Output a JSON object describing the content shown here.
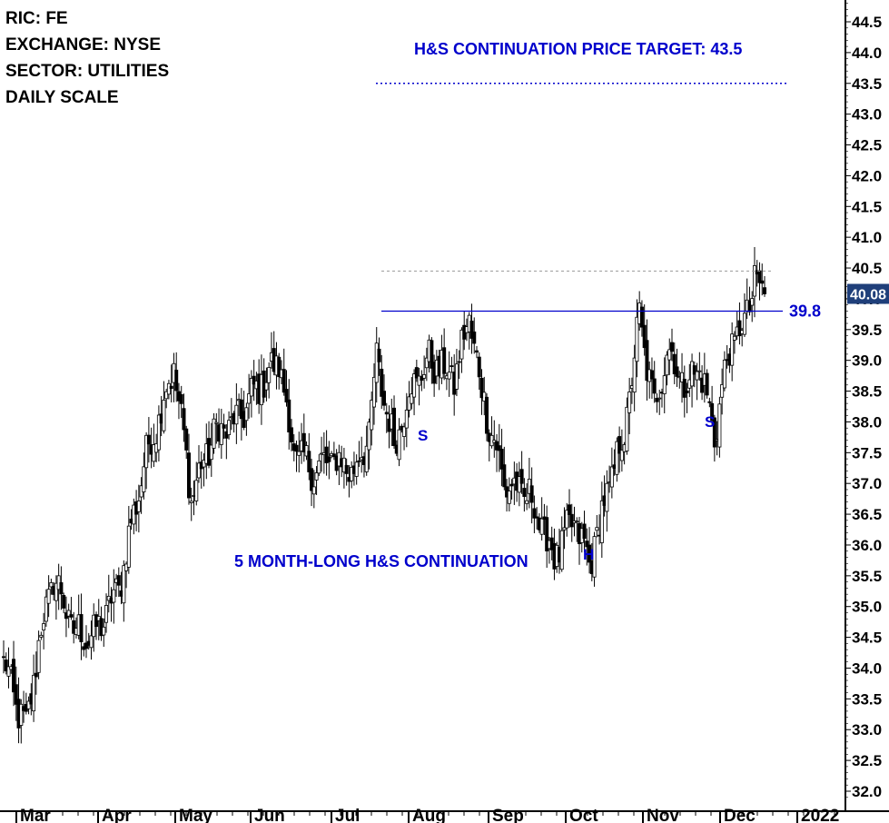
{
  "header": {
    "ric": "RIC: FE",
    "exchange": "EXCHANGE: NYSE",
    "sector": "SECTOR: UTILITIES",
    "scale": "DAILY SCALE"
  },
  "annotations": {
    "target_text": "H&S CONTINUATION PRICE TARGET: 43.5",
    "pattern_text": "5 MONTH-LONG H&S CONTINUATION",
    "left_shoulder": "S",
    "head": "H",
    "right_shoulder": "S",
    "neckline_label": "39.8",
    "last_price_label": "40.08"
  },
  "colors": {
    "annotation_blue": "#0000cc",
    "neckline": "#0000cc",
    "last_price_box": "#1f3f7a",
    "candle_down": "#000000",
    "candle_up": "#ffffff"
  },
  "chart_data": {
    "type": "candlestick",
    "ylim": [
      31.8,
      44.9
    ],
    "yticks": [
      32.0,
      32.5,
      33.0,
      33.5,
      34.0,
      34.5,
      35.0,
      35.5,
      36.0,
      36.5,
      37.0,
      37.5,
      38.0,
      38.5,
      39.0,
      39.5,
      40.0,
      40.5,
      41.0,
      41.5,
      42.0,
      42.5,
      43.0,
      43.5,
      44.0,
      44.5
    ],
    "x_labels": [
      "Mar",
      "Apr",
      "May",
      "Jun",
      "Jul",
      "Aug",
      "Sep",
      "Oct",
      "Nov",
      "Dec",
      "2022"
    ],
    "neckline": 39.8,
    "target": 43.5,
    "recent_high_dotted": 40.45,
    "last_price": 40.08,
    "anchor_path": [
      [
        0,
        34.1
      ],
      [
        6,
        33.3
      ],
      [
        9,
        33.0
      ],
      [
        14,
        34.4
      ],
      [
        20,
        35.5
      ],
      [
        28,
        34.6
      ],
      [
        36,
        34.5
      ],
      [
        46,
        35.3
      ],
      [
        56,
        37.3
      ],
      [
        68,
        38.9
      ],
      [
        75,
        36.8
      ],
      [
        84,
        37.8
      ],
      [
        93,
        38.0
      ],
      [
        102,
        38.6
      ],
      [
        110,
        39.0
      ],
      [
        116,
        37.5
      ],
      [
        124,
        37.2
      ],
      [
        132,
        37.4
      ],
      [
        140,
        37.2
      ],
      [
        146,
        37.8
      ],
      [
        149,
        39.0
      ],
      [
        156,
        37.6
      ],
      [
        162,
        38.5
      ],
      [
        170,
        39.0
      ],
      [
        180,
        38.7
      ],
      [
        186,
        39.7
      ],
      [
        191,
        38.5
      ],
      [
        200,
        37.0
      ],
      [
        210,
        36.8
      ],
      [
        220,
        35.8
      ],
      [
        228,
        36.4
      ],
      [
        234,
        35.7
      ],
      [
        242,
        37.0
      ],
      [
        248,
        37.8
      ],
      [
        254,
        39.7
      ],
      [
        260,
        38.2
      ],
      [
        265,
        39.2
      ],
      [
        272,
        38.6
      ],
      [
        278,
        38.9
      ],
      [
        284,
        37.8
      ],
      [
        290,
        39.2
      ],
      [
        296,
        39.6
      ],
      [
        300,
        40.3
      ],
      [
        303,
        40.08
      ]
    ]
  }
}
